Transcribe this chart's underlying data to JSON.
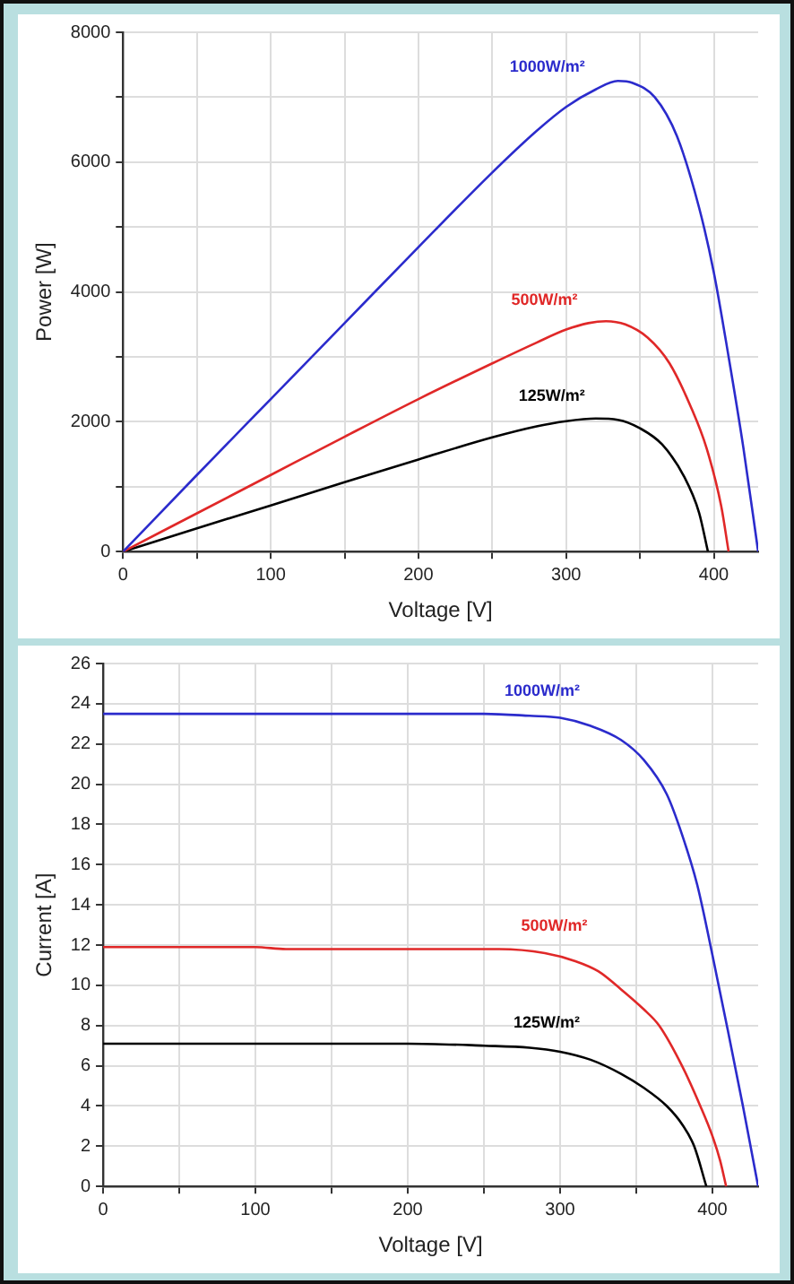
{
  "chart_data": [
    {
      "type": "line",
      "xlabel": "Voltage [V]",
      "ylabel": "Power [W]",
      "xlim": [
        0,
        430
      ],
      "xticks": [
        0,
        {
          "value": 50,
          "label": null
        },
        100,
        {
          "value": 150,
          "label": null
        },
        200,
        {
          "value": 250,
          "label": null
        },
        300,
        {
          "value": 350,
          "label": null
        },
        400
      ],
      "ylim": [
        0,
        8000
      ],
      "yticks": [
        0,
        {
          "value": 1000,
          "label": null
        },
        2000,
        {
          "value": 3000,
          "label": null
        },
        4000,
        {
          "value": 5000,
          "label": null
        },
        6000,
        {
          "value": 7000,
          "label": null
        },
        8000
      ],
      "grid": true,
      "series": [
        {
          "name": "1000W/m²",
          "color": "#2b2bcc",
          "x": [
            0,
            50,
            100,
            150,
            200,
            250,
            280,
            300,
            320,
            335,
            345,
            360,
            375,
            390,
            400,
            410,
            420,
            430
          ],
          "values": [
            0,
            1180,
            2350,
            3520,
            4690,
            5840,
            6480,
            6850,
            7120,
            7250,
            7220,
            7000,
            6400,
            5300,
            4300,
            3000,
            1600,
            0
          ]
        },
        {
          "name": "500W/m²",
          "color": "#e02828",
          "x": [
            0,
            50,
            100,
            150,
            200,
            250,
            280,
            300,
            315,
            327,
            340,
            355,
            370,
            385,
            395,
            405,
            410
          ],
          "values": [
            0,
            590,
            1180,
            1770,
            2350,
            2900,
            3220,
            3420,
            3520,
            3550,
            3500,
            3300,
            2900,
            2200,
            1600,
            700,
            0
          ]
        },
        {
          "name": "125W/m²",
          "color": "#000000",
          "x": [
            0,
            50,
            100,
            150,
            200,
            250,
            280,
            300,
            320,
            335,
            350,
            365,
            380,
            390,
            396
          ],
          "values": [
            0,
            360,
            710,
            1070,
            1420,
            1760,
            1930,
            2010,
            2050,
            2030,
            1900,
            1650,
            1150,
            600,
            0
          ]
        }
      ]
    },
    {
      "type": "line",
      "xlabel": "Voltage [V]",
      "ylabel": "Current [A]",
      "xlim": [
        0,
        430
      ],
      "xticks": [
        0,
        {
          "value": 50,
          "label": null
        },
        100,
        {
          "value": 150,
          "label": null
        },
        200,
        {
          "value": 250,
          "label": null
        },
        300,
        {
          "value": 350,
          "label": null
        },
        400
      ],
      "ylim": [
        0,
        26
      ],
      "yticks": [
        0,
        2,
        4,
        6,
        8,
        10,
        12,
        14,
        16,
        18,
        20,
        22,
        24,
        26
      ],
      "grid": true,
      "series": [
        {
          "name": "1000W/m²",
          "color": "#2b2bcc",
          "x": [
            0,
            100,
            200,
            250,
            280,
            300,
            320,
            340,
            355,
            370,
            380,
            390,
            400,
            410,
            420,
            430
          ],
          "values": [
            23.5,
            23.5,
            23.5,
            23.5,
            23.4,
            23.3,
            22.9,
            22.2,
            21.2,
            19.5,
            17.5,
            15,
            11.5,
            7.8,
            4,
            0
          ]
        },
        {
          "name": "500W/m²",
          "color": "#e02828",
          "x": [
            0,
            100,
            120,
            200,
            260,
            290,
            310,
            325,
            340,
            355,
            365,
            380,
            392,
            400,
            405,
            409
          ],
          "values": [
            11.9,
            11.9,
            11.8,
            11.8,
            11.8,
            11.6,
            11.2,
            10.7,
            9.8,
            8.8,
            8,
            6,
            4,
            2.5,
            1.3,
            0
          ]
        },
        {
          "name": "125W/m²",
          "color": "#000000",
          "x": [
            0,
            100,
            200,
            250,
            280,
            300,
            320,
            340,
            355,
            370,
            380,
            388,
            396
          ],
          "values": [
            7.1,
            7.1,
            7.1,
            7.0,
            6.9,
            6.7,
            6.3,
            5.6,
            4.9,
            4,
            3.1,
            2,
            0
          ]
        }
      ]
    }
  ]
}
